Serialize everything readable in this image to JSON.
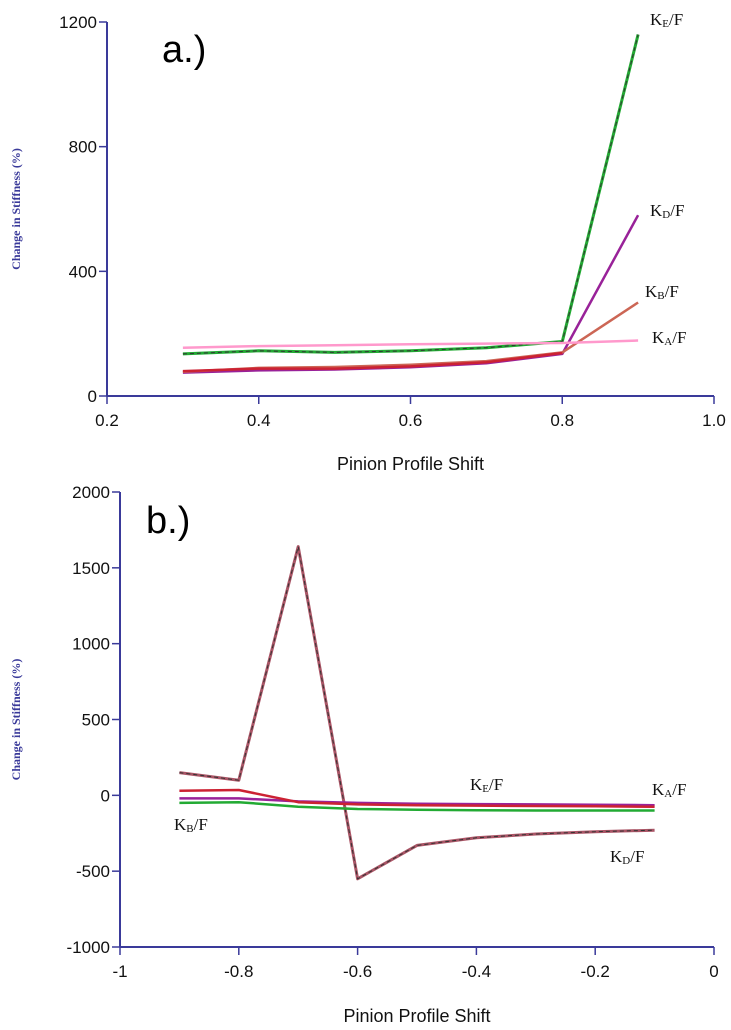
{
  "chart_data": [
    {
      "type": "line",
      "panel_label": "a.)",
      "xlabel": "Pinion Profile Shift",
      "ylabel": "Change in Stiffness (%)",
      "xlim": [
        0.2,
        1.0
      ],
      "ylim": [
        0,
        1200
      ],
      "xticks": [
        "0.2",
        "0.4",
        "0.6",
        "0.8",
        "1.0"
      ],
      "yticks": [
        "0",
        "400",
        "800",
        "1200"
      ],
      "x": [
        0.3,
        0.4,
        0.5,
        0.6,
        0.7,
        0.8,
        0.9
      ],
      "series": [
        {
          "name": "KE/F",
          "label_main": "K",
          "label_sub": "E",
          "label_tail": "/F",
          "color": "#22aa33",
          "dashed": true,
          "values": [
            135,
            145,
            140,
            145,
            155,
            175,
            1160
          ]
        },
        {
          "name": "KD/F",
          "label_main": "K",
          "label_sub": "D",
          "label_tail": "/F",
          "color": "#992299",
          "dashed": false,
          "values": [
            75,
            82,
            85,
            92,
            105,
            135,
            580
          ]
        },
        {
          "name": "KB/F",
          "label_main": "K",
          "label_sub": "B",
          "label_tail": "/F",
          "color": "#cc6655",
          "dashed": false,
          "values": [
            78,
            90,
            93,
            100,
            112,
            140,
            300
          ]
        },
        {
          "name": "KA/F",
          "label_main": "K",
          "label_sub": "A",
          "label_tail": "/F",
          "color": "#ff99cc",
          "dashed": false,
          "values": [
            155,
            160,
            163,
            166,
            168,
            170,
            178
          ]
        },
        {
          "name": "",
          "color": "#cc2233",
          "dashed": false,
          "values": [
            80,
            88,
            88,
            95,
            108,
            138,
            null
          ]
        }
      ]
    },
    {
      "type": "line",
      "panel_label": "b.)",
      "xlabel": "Pinion Profile Shift",
      "ylabel": "Change in Stiffness (%)",
      "xlim": [
        -1,
        0
      ],
      "ylim": [
        -1000,
        2000
      ],
      "xticks": [
        "-1",
        "-0.8",
        "-0.6",
        "-0.4",
        "-0.2",
        "0"
      ],
      "yticks": [
        "-1000",
        "-500",
        "0",
        "500",
        "1000",
        "1500",
        "2000"
      ],
      "x": [
        -0.9,
        -0.8,
        -0.7,
        -0.6,
        -0.5,
        -0.4,
        -0.3,
        -0.2,
        -0.1
      ],
      "series": [
        {
          "name": "KE/F",
          "label_main": "K",
          "label_sub": "E",
          "label_tail": "/F",
          "color": "#aa5566",
          "dashed": true,
          "values": [
            150,
            100,
            1640,
            -550,
            -330,
            -280,
            -255,
            -240,
            -230
          ]
        },
        {
          "name": "KA/F",
          "label_main": "K",
          "label_sub": "A",
          "label_tail": "/F",
          "color": "#992299",
          "dashed": false,
          "values": [
            -20,
            -20,
            -40,
            -50,
            -55,
            -58,
            -60,
            -62,
            -65
          ]
        },
        {
          "name": "KB/F",
          "label_main": "K",
          "label_sub": "B",
          "label_tail": "/F",
          "color": "#cc2233",
          "dashed": false,
          "values": [
            30,
            35,
            -45,
            -60,
            -65,
            -68,
            -70,
            -72,
            -75
          ]
        },
        {
          "name": "KD/F",
          "label_main": "K",
          "label_sub": "D",
          "label_tail": "/F",
          "color": "#22aa33",
          "dashed": false,
          "values": [
            -50,
            -45,
            -75,
            -90,
            -95,
            -98,
            -100,
            -100,
            -100
          ]
        }
      ]
    }
  ]
}
